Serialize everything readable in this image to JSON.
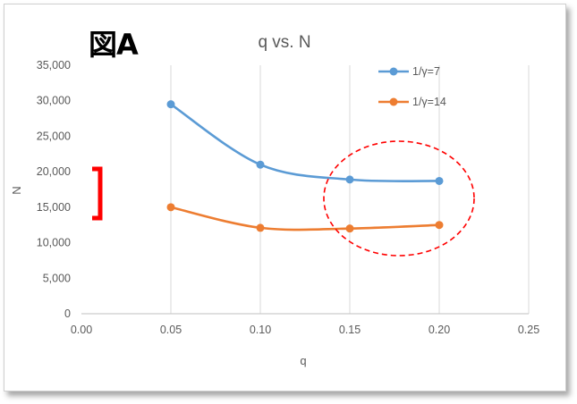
{
  "figure_label": "図A",
  "chart_data": {
    "type": "line",
    "title": "q vs. N",
    "xlabel": "q",
    "ylabel": "N",
    "x_ticks": [
      "0.00",
      "0.05",
      "0.10",
      "0.15",
      "0.20",
      "0.25"
    ],
    "y_ticks": [
      "0",
      "5,000",
      "10,000",
      "15,000",
      "20,000",
      "25,000",
      "30,000",
      "35,000"
    ],
    "xlim": [
      0,
      0.25
    ],
    "ylim": [
      0,
      35000
    ],
    "grid": "vertical",
    "legend_position": "top-right",
    "x": [
      0.05,
      0.1,
      0.15,
      0.2
    ],
    "series": [
      {
        "name": "1/γ=7",
        "values": [
          29500,
          21000,
          18900,
          18700
        ],
        "color": "#5B9BD5"
      },
      {
        "name": "1/γ=14",
        "values": [
          15000,
          12100,
          12000,
          12500
        ],
        "color": "#ED7D31"
      }
    ]
  },
  "annotations": {
    "bracket_color": "#FF0000",
    "ellipse_color": "#FF0000"
  }
}
